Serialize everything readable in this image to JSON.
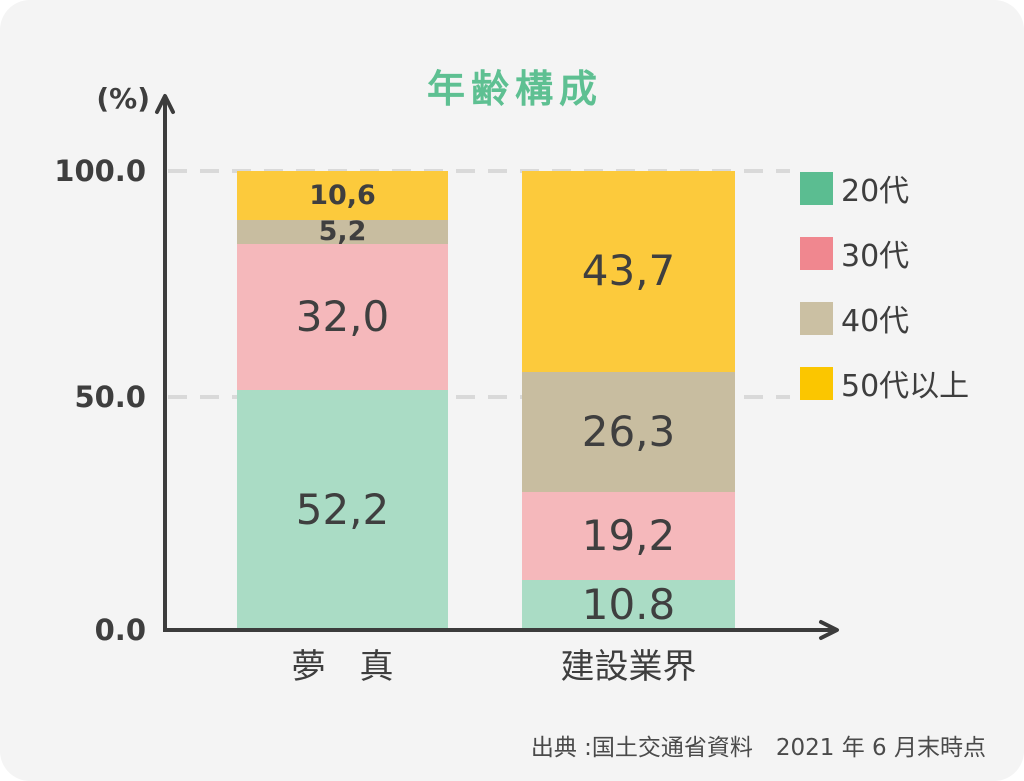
{
  "colors": {
    "background": "#f4f4f4",
    "title_green": "#5ec092",
    "axis": "#3c3c3c",
    "grid": "#d9d9d9",
    "text": "#3e3e3e",
    "value_text": "#3f3f3f"
  },
  "chart_data": {
    "type": "bar",
    "stacked": true,
    "title": "年齢構成",
    "unit_label": "(%)",
    "xlabel": "",
    "ylabel": "(%)",
    "ylim": [
      0,
      100
    ],
    "grid": "dashed horizontal gridlines at 50 and 100",
    "legend_position": "right",
    "categories": [
      "夢　真",
      "建設業界"
    ],
    "series": [
      {
        "name": "20代",
        "values": [
          52.2,
          10.8
        ]
      },
      {
        "name": "30代",
        "values": [
          32.0,
          19.2
        ]
      },
      {
        "name": "40代",
        "values": [
          5.2,
          26.3
        ]
      },
      {
        "name": "50代以上",
        "values": [
          10.6,
          43.7
        ]
      }
    ],
    "value_labels": [
      [
        "52,2",
        "32,0",
        "5,2",
        "10,6"
      ],
      [
        "10.8",
        "19,2",
        "26,3",
        "43,7"
      ]
    ],
    "small_value_labels": [
      [
        false,
        false,
        true,
        true
      ],
      [
        false,
        false,
        false,
        false
      ]
    ],
    "bar_colors": [
      "#aadcc5",
      "#f5b8bb",
      "#c8bda0",
      "#fcca3c"
    ],
    "legend": [
      {
        "label": "20代",
        "color": "#5bbd91"
      },
      {
        "label": "30代",
        "color": "#f0878f"
      },
      {
        "label": "40代",
        "color": "#cbc0a3"
      },
      {
        "label": "50代以上",
        "color": "#fbc600"
      }
    ],
    "yticks": [
      {
        "label": "100.0",
        "value": 100
      },
      {
        "label": "50.0",
        "value": 50
      },
      {
        "label": "0.0",
        "value": 0
      }
    ]
  },
  "source": "出典 :国土交通省資料　2021 年 6 月末時点"
}
